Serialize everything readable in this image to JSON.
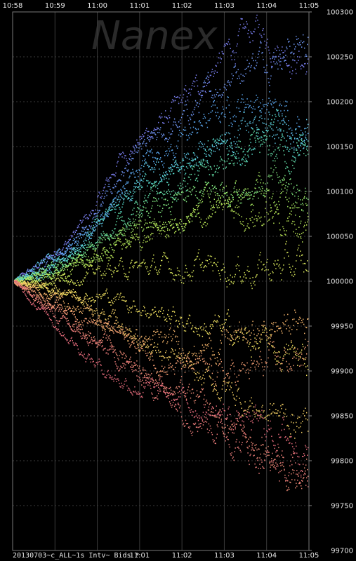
{
  "colors": {
    "background": "#000000",
    "grid": "#3a3a3a",
    "text": "#e8e8e8"
  },
  "watermark": "Nanex",
  "footer_label": "20130703~c_ALL~1s Intv~ Bids *",
  "chart_data": {
    "type": "scatter",
    "title": "",
    "xlabel": "",
    "ylabel": "",
    "x_ticks_top": [
      "10:58",
      "10:59",
      "11:00",
      "11:01",
      "11:02",
      "11:03",
      "11:04",
      "11:05"
    ],
    "x_ticks_bottom": [
      "11:01",
      "11:02",
      "11:03",
      "11:04",
      "11:05"
    ],
    "y_ticks": [
      100300,
      100250,
      100200,
      100150,
      100100,
      100050,
      100000,
      99950,
      99900,
      99850,
      99800,
      99750,
      99700
    ],
    "ylim": [
      99700,
      100300
    ],
    "xlim": [
      "10:58",
      "11:05"
    ],
    "grid": true,
    "series": [
      {
        "color": "#7a7ff0",
        "values": [
          100000,
          100020,
          100045,
          100080,
          100140,
          100165,
          100190,
          100220,
          100255,
          100280,
          100265,
          100240
        ]
      },
      {
        "color": "#6e95f2",
        "values": [
          100000,
          100015,
          100040,
          100070,
          100120,
          100150,
          100170,
          100200,
          100230,
          100250,
          100260,
          100270
        ]
      },
      {
        "color": "#5aa6ee",
        "values": [
          100000,
          100010,
          100035,
          100060,
          100100,
          100140,
          100150,
          100175,
          100195,
          100205,
          100185,
          100180
        ]
      },
      {
        "color": "#5ec6e6",
        "values": [
          100000,
          100020,
          100030,
          100055,
          100090,
          100120,
          100130,
          100150,
          100165,
          100170,
          100175,
          100170
        ]
      },
      {
        "color": "#56d6c9",
        "values": [
          100000,
          100010,
          100030,
          100060,
          100085,
          100110,
          100125,
          100140,
          100150,
          100160,
          100165,
          100150
        ]
      },
      {
        "color": "#63dca6",
        "values": [
          100000,
          100005,
          100020,
          100040,
          100070,
          100090,
          100100,
          100120,
          100130,
          100140,
          100145,
          100140
        ]
      },
      {
        "color": "#7fe17c",
        "values": [
          100000,
          100010,
          100020,
          100035,
          100060,
          100075,
          100085,
          100095,
          100105,
          100110,
          100105,
          100100
        ]
      },
      {
        "color": "#a2e25e",
        "values": [
          100000,
          100005,
          100015,
          100030,
          100050,
          100060,
          100070,
          100085,
          100095,
          100100,
          100090,
          100085
        ]
      },
      {
        "color": "#b9e456",
        "values": [
          100000,
          100002,
          100010,
          100025,
          100040,
          100050,
          100060,
          100070,
          100080,
          100075,
          100070,
          100060
        ]
      },
      {
        "color": "#d6e45a",
        "values": [
          100000,
          100000,
          100005,
          100010,
          100015,
          100015,
          100015,
          100015,
          100015,
          100015,
          100015,
          100015
        ]
      },
      {
        "color": "#f0e060",
        "values": [
          100000,
          99995,
          99990,
          99985,
          99980,
          99970,
          99960,
          99950,
          99945,
          99930,
          99920,
          99910
        ]
      },
      {
        "color": "#f3cf64",
        "values": [
          100000,
          99995,
          99985,
          99970,
          99950,
          99930,
          99910,
          99890,
          99880,
          99860,
          99850,
          99840
        ]
      },
      {
        "color": "#f1b26a",
        "values": [
          100000,
          99990,
          99975,
          99960,
          99945,
          99935,
          99930,
          99925,
          99935,
          99940,
          99950,
          99955
        ]
      },
      {
        "color": "#ee9a70",
        "values": [
          100000,
          99985,
          99970,
          99955,
          99940,
          99920,
          99905,
          99900,
          99895,
          99900,
          99910,
          99920
        ]
      },
      {
        "color": "#e98874",
        "values": [
          100000,
          99980,
          99960,
          99940,
          99920,
          99900,
          99880,
          99860,
          99840,
          99820,
          99800,
          99790
        ]
      },
      {
        "color": "#e77a78",
        "values": [
          100000,
          99975,
          99950,
          99930,
          99910,
          99890,
          99870,
          99850,
          99830,
          99810,
          99790,
          99780
        ]
      },
      {
        "color": "#e26a7a",
        "values": [
          100000,
          99970,
          99940,
          99910,
          99890,
          99880,
          99870,
          99860,
          99850,
          99840,
          99830,
          99820
        ]
      }
    ]
  }
}
